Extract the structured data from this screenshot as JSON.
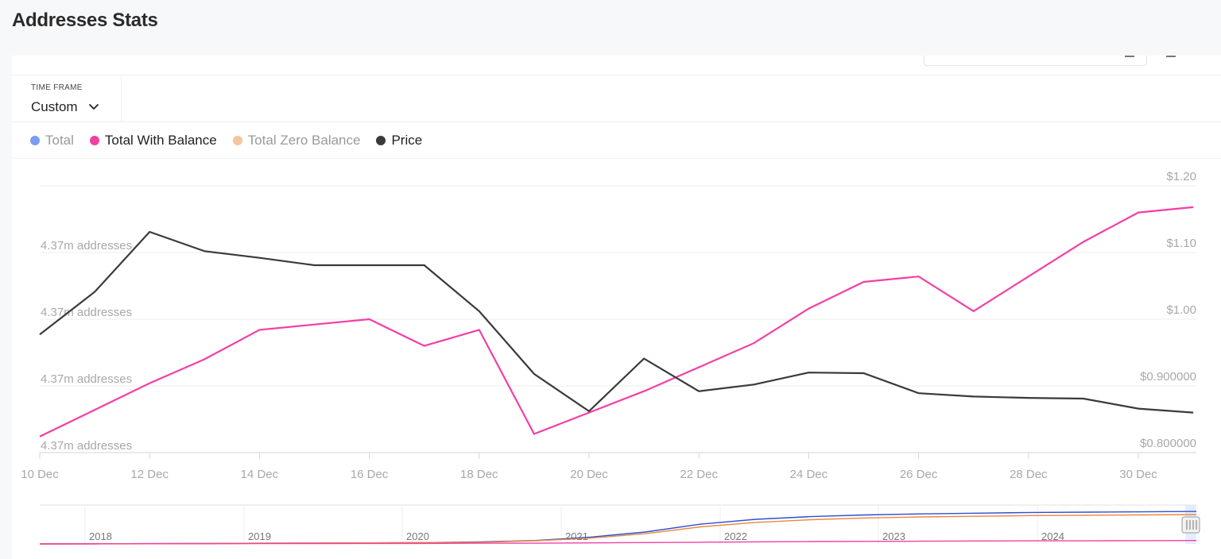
{
  "page": {
    "title": "Addresses Stats"
  },
  "timeframe": {
    "label": "TIME FRAME",
    "value": "Custom"
  },
  "legend": [
    {
      "label": "Total",
      "color": "#7b9cf5",
      "active": false
    },
    {
      "label": "Total With Balance",
      "color": "#f23fa5",
      "active": true
    },
    {
      "label": "Total Zero Balance",
      "color": "#f5c4a0",
      "active": false
    },
    {
      "label": "Price",
      "color": "#3a3a3a",
      "active": true
    }
  ],
  "chart_data": {
    "type": "line",
    "x": [
      "10 Dec",
      "11 Dec",
      "12 Dec",
      "13 Dec",
      "14 Dec",
      "15 Dec",
      "16 Dec",
      "17 Dec",
      "18 Dec",
      "19 Dec",
      "20 Dec",
      "21 Dec",
      "22 Dec",
      "23 Dec",
      "24 Dec",
      "25 Dec",
      "26 Dec",
      "27 Dec",
      "28 Dec",
      "29 Dec",
      "30 Dec",
      "31 Dec"
    ],
    "x_ticks": [
      "10 Dec",
      "12 Dec",
      "14 Dec",
      "16 Dec",
      "18 Dec",
      "20 Dec",
      "22 Dec",
      "24 Dec",
      "26 Dec",
      "28 Dec",
      "30 Dec"
    ],
    "left_axis": {
      "ticks": [
        "4.37m addresses",
        "4.37m addresses",
        "4.37m addresses",
        "4.37m addresses"
      ],
      "range": [
        0,
        100
      ]
    },
    "right_axis": {
      "ticks": [
        "$0.800000",
        "$0.900000",
        "$1.00",
        "$1.10",
        "$1.20"
      ],
      "range": [
        0.8,
        1.2
      ]
    },
    "series": [
      {
        "name": "Total With Balance",
        "axis": "left",
        "color": "#f23fa5",
        "values": [
          6,
          16,
          26,
          35,
          46,
          48,
          50,
          40,
          46,
          7,
          15,
          23,
          32,
          41,
          54,
          64,
          66,
          53,
          66,
          79,
          90,
          92
        ]
      },
      {
        "name": "Price",
        "axis": "right",
        "color": "#3a3a3a",
        "values": [
          0.977,
          1.041,
          1.131,
          1.102,
          1.092,
          1.081,
          1.081,
          1.081,
          1.012,
          0.918,
          0.862,
          0.941,
          0.892,
          0.902,
          0.92,
          0.919,
          0.889,
          0.884,
          0.882,
          0.881,
          0.866,
          0.86
        ]
      }
    ],
    "navigator": {
      "years": [
        "2018",
        "2019",
        "2020",
        "2021",
        "2022",
        "2023",
        "2024"
      ],
      "series": [
        {
          "name": "Total",
          "color": "#2f4fd1",
          "values": [
            0,
            0.5,
            1,
            1.5,
            2,
            2.5,
            3,
            4,
            6,
            10,
            20,
            35,
            58,
            72,
            80,
            85,
            88,
            90,
            92,
            93,
            94,
            95
          ]
        },
        {
          "name": "Total Zero Balance",
          "color": "#e8893d",
          "values": [
            0,
            0.5,
            1,
            1.5,
            2,
            2.5,
            3,
            4,
            5,
            9,
            17,
            30,
            50,
            63,
            71,
            76,
            79,
            81,
            83,
            84,
            85,
            86
          ]
        },
        {
          "name": "Total With Balance",
          "color": "#f23fa5",
          "values": [
            0,
            0,
            0.5,
            0.5,
            1,
            1,
            1.5,
            1.5,
            2,
            2,
            3,
            4,
            5,
            6,
            7,
            7.5,
            8,
            8.5,
            9,
            9,
            9.5,
            10
          ]
        }
      ]
    },
    "grid": true
  }
}
